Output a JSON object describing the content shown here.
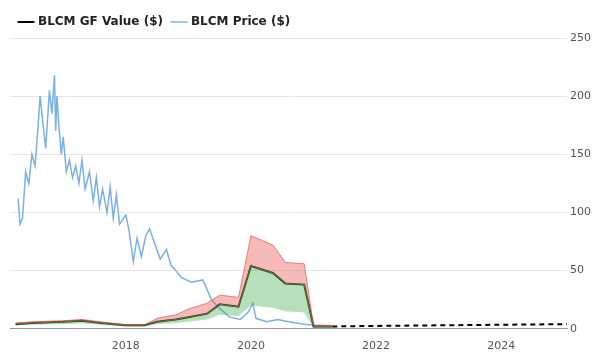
{
  "chart_data": {
    "type": "line",
    "legend": "upper left",
    "grid": true,
    "xlim": [
      2016.15,
      2025.05
    ],
    "xticks": [
      2018,
      2020,
      2022,
      2024
    ],
    "ylim": [
      0,
      250
    ],
    "yticks": [
      0,
      50,
      100,
      150,
      200,
      250
    ],
    "series": [
      {
        "name": "BLCM GF Value ($)",
        "color": "#000000",
        "line_style": "solid",
        "x": [
          2016.24,
          2016.5,
          2017.0,
          2017.3,
          2017.6,
          2018.0,
          2018.3,
          2018.5,
          2018.8,
          2019.0,
          2019.3,
          2019.5,
          2019.8,
          2020.0,
          2020.35,
          2020.55,
          2020.85,
          2021.0,
          2021.3
        ],
        "values": [
          4,
          5,
          6,
          7,
          5,
          3,
          3,
          6,
          8,
          10,
          13,
          21,
          19,
          54,
          48,
          39,
          38,
          2,
          2
        ]
      },
      {
        "color": "#000000",
        "line_style": "dashed",
        "x": [
          2021.3,
          2022.0,
          2023.0,
          2024.0,
          2025.05
        ],
        "values": [
          2,
          2.5,
          3,
          3.5,
          4
        ]
      },
      {
        "name": "BLCM Price ($)",
        "color": "#7ab0e8",
        "line_style": "solid",
        "x": [
          2016.28,
          2016.31,
          2016.35,
          2016.4,
          2016.45,
          2016.5,
          2016.55,
          2016.6,
          2016.63,
          2016.67,
          2016.72,
          2016.78,
          2016.82,
          2016.86,
          2016.88,
          2016.9,
          2016.93,
          2016.97,
          2017.0,
          2017.05,
          2017.1,
          2017.15,
          2017.2,
          2017.25,
          2017.3,
          2017.35,
          2017.42,
          2017.48,
          2017.53,
          2017.58,
          2017.63,
          2017.7,
          2017.75,
          2017.8,
          2017.85,
          2017.9,
          2018.0,
          2018.05,
          2018.12,
          2018.18,
          2018.25,
          2018.32,
          2018.38,
          2018.45,
          2018.55,
          2018.65,
          2018.72,
          2018.8,
          2018.89,
          2019.05,
          2019.23,
          2019.37,
          2019.49,
          2019.66,
          2019.83,
          2019.95,
          2020.03,
          2020.08,
          2020.25,
          2020.43,
          2020.6,
          2020.85,
          2021.03,
          2021.28
        ],
        "values": [
          112,
          90,
          95,
          135,
          125,
          150,
          140,
          175,
          200,
          180,
          155,
          205,
          185,
          218,
          170,
          200,
          175,
          150,
          165,
          135,
          145,
          130,
          140,
          125,
          145,
          120,
          135,
          110,
          130,
          105,
          120,
          100,
          122,
          95,
          115,
          90,
          98,
          85,
          58,
          78,
          62,
          80,
          86,
          75,
          60,
          68,
          55,
          50,
          44,
          40,
          42,
          25,
          18,
          10,
          8,
          14,
          22,
          9,
          6,
          8,
          6,
          4,
          3,
          2.5
        ]
      }
    ],
    "bands": [
      {
        "color": "#e8534f",
        "x": [
          2016.24,
          2016.5,
          2017.0,
          2017.3,
          2017.6,
          2018.0,
          2018.3,
          2018.5,
          2018.8,
          2019.0,
          2019.3,
          2019.5,
          2019.8,
          2020.0,
          2020.35,
          2020.55,
          2020.85,
          2021.0,
          2021.3
        ],
        "lower": [
          4,
          5,
          6,
          7,
          5,
          3,
          3,
          6,
          8,
          10,
          13,
          21,
          19,
          54,
          48,
          39,
          38,
          2,
          2
        ],
        "upper": [
          5,
          6,
          7,
          8,
          6,
          3.5,
          3.5,
          9,
          12,
          17,
          22,
          29,
          27,
          80,
          72,
          57,
          56,
          3,
          3
        ]
      },
      {
        "color": "#4caf50",
        "x": [
          2016.24,
          2016.5,
          2017.0,
          2017.3,
          2017.6,
          2018.0,
          2018.3,
          2018.5,
          2018.8,
          2019.0,
          2019.3,
          2019.5,
          2019.8,
          2020.0,
          2020.35,
          2020.55,
          2020.85,
          2021.0,
          2021.3
        ],
        "lower": [
          3,
          3.5,
          4,
          4.5,
          3.5,
          2,
          2,
          4,
          5,
          6,
          8,
          12,
          11,
          20,
          18,
          15,
          14,
          1,
          1
        ],
        "upper": [
          4,
          5,
          6,
          7,
          5,
          3,
          3,
          6,
          8,
          10,
          13,
          21,
          19,
          54,
          48,
          39,
          38,
          2,
          2
        ]
      }
    ]
  }
}
